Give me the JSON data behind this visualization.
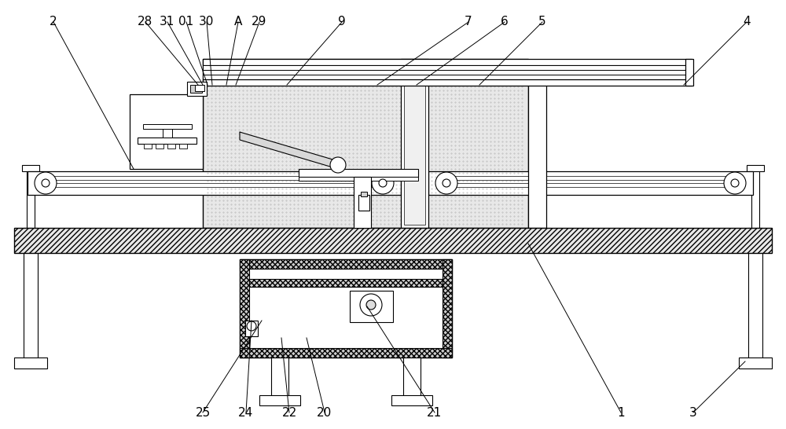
{
  "bg_color": "#ffffff",
  "line_color": "#000000",
  "label_data": [
    [
      "2",
      170,
      215,
      68,
      28
    ],
    [
      "28",
      252,
      108,
      185,
      28
    ],
    [
      "31",
      258,
      108,
      213,
      28
    ],
    [
      "01",
      264,
      108,
      237,
      28
    ],
    [
      "30",
      270,
      108,
      263,
      28
    ],
    [
      "A",
      288,
      108,
      303,
      28
    ],
    [
      "29",
      300,
      108,
      330,
      28
    ],
    [
      "9",
      365,
      108,
      435,
      28
    ],
    [
      "7",
      480,
      108,
      596,
      28
    ],
    [
      "6",
      530,
      108,
      642,
      28
    ],
    [
      "5",
      610,
      108,
      690,
      28
    ],
    [
      "4",
      870,
      108,
      950,
      28
    ],
    [
      "25",
      333,
      408,
      258,
      525
    ],
    [
      "24",
      320,
      408,
      313,
      525
    ],
    [
      "22",
      358,
      430,
      368,
      525
    ],
    [
      "20",
      390,
      430,
      413,
      525
    ],
    [
      "21",
      467,
      390,
      553,
      525
    ],
    [
      "1",
      672,
      310,
      790,
      525
    ],
    [
      "3",
      948,
      460,
      882,
      525
    ]
  ]
}
